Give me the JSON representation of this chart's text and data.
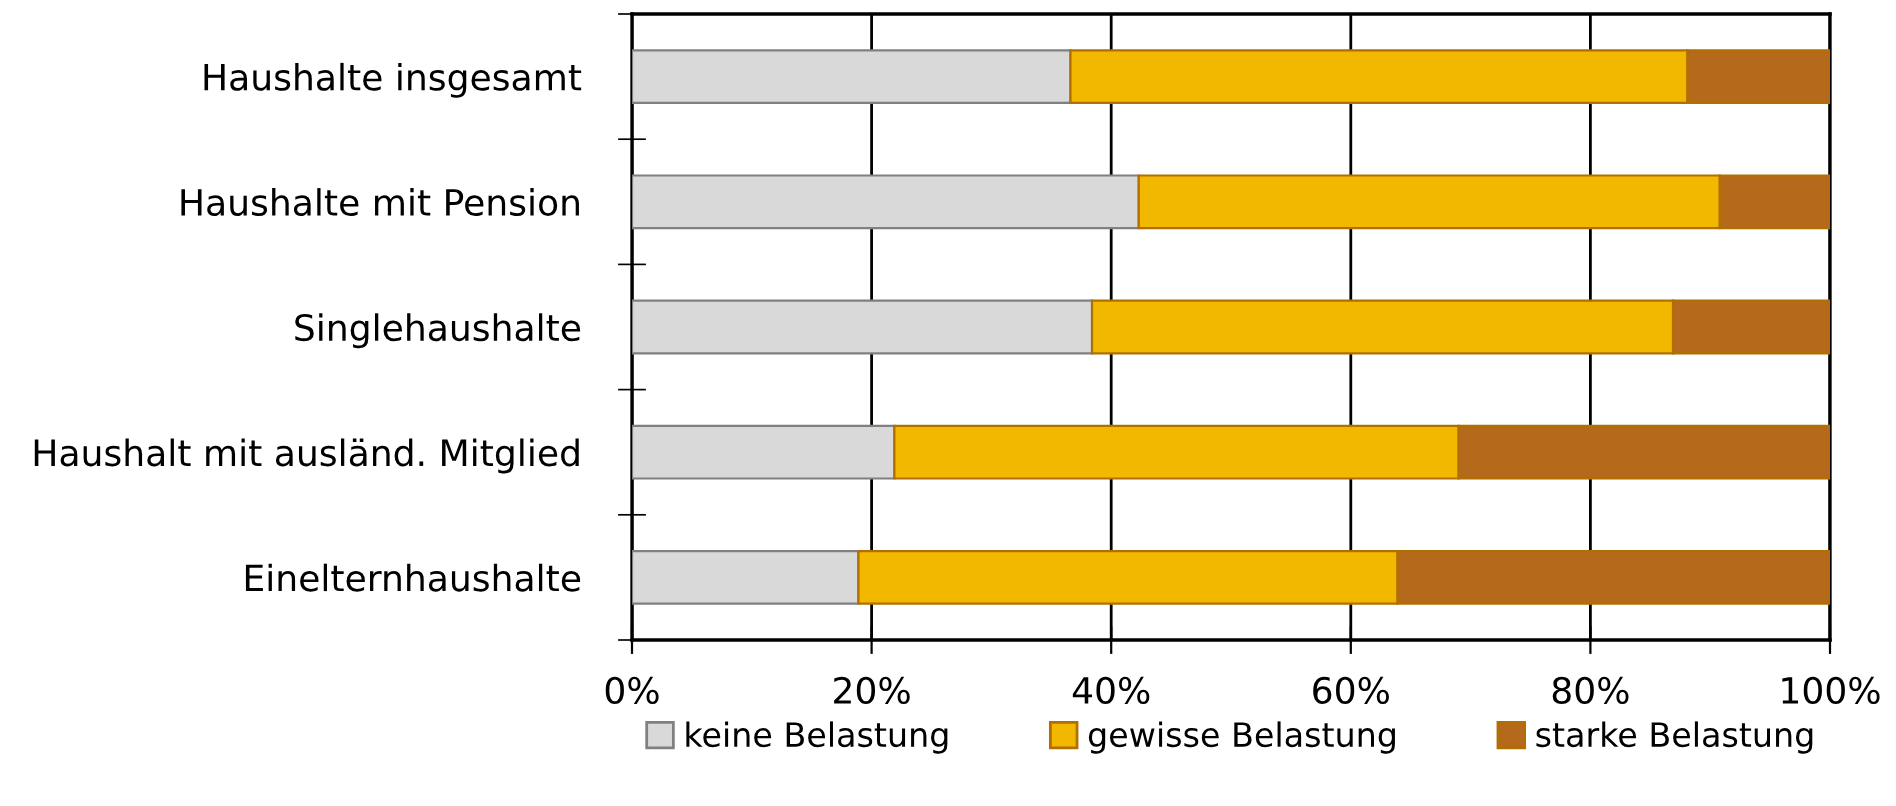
{
  "chart_data": {
    "type": "bar",
    "orientation": "horizontal",
    "stacked": true,
    "categories": [
      "Haushalte insgesamt",
      "Haushalte mit Pension",
      "Singlehaushalte",
      "Haushalt mit ausländ. Mitglied",
      "Einelternhaushalte"
    ],
    "series": [
      {
        "name": "keine Belastung",
        "color": "#d9d9d9",
        "values": [
          36.6,
          42.3,
          38.4,
          21.9,
          18.9
        ]
      },
      {
        "name": "gewisse Belastung",
        "color": "#f2b800",
        "values": [
          51.5,
          48.5,
          48.5,
          47.1,
          45.0
        ]
      },
      {
        "name": "starke Belastung",
        "color": "#b5691a",
        "values": [
          11.9,
          9.2,
          13.1,
          31.0,
          36.1
        ]
      }
    ],
    "xlim": [
      0,
      100
    ],
    "xticks": [
      {
        "value": 0,
        "label": "0%"
      },
      {
        "value": 20,
        "label": "20%"
      },
      {
        "value": 40,
        "label": "40%"
      },
      {
        "value": 60,
        "label": "60%"
      },
      {
        "value": 80,
        "label": "80%"
      },
      {
        "value": 100,
        "label": "100%"
      }
    ],
    "grid": "x",
    "legend": "bottom"
  }
}
